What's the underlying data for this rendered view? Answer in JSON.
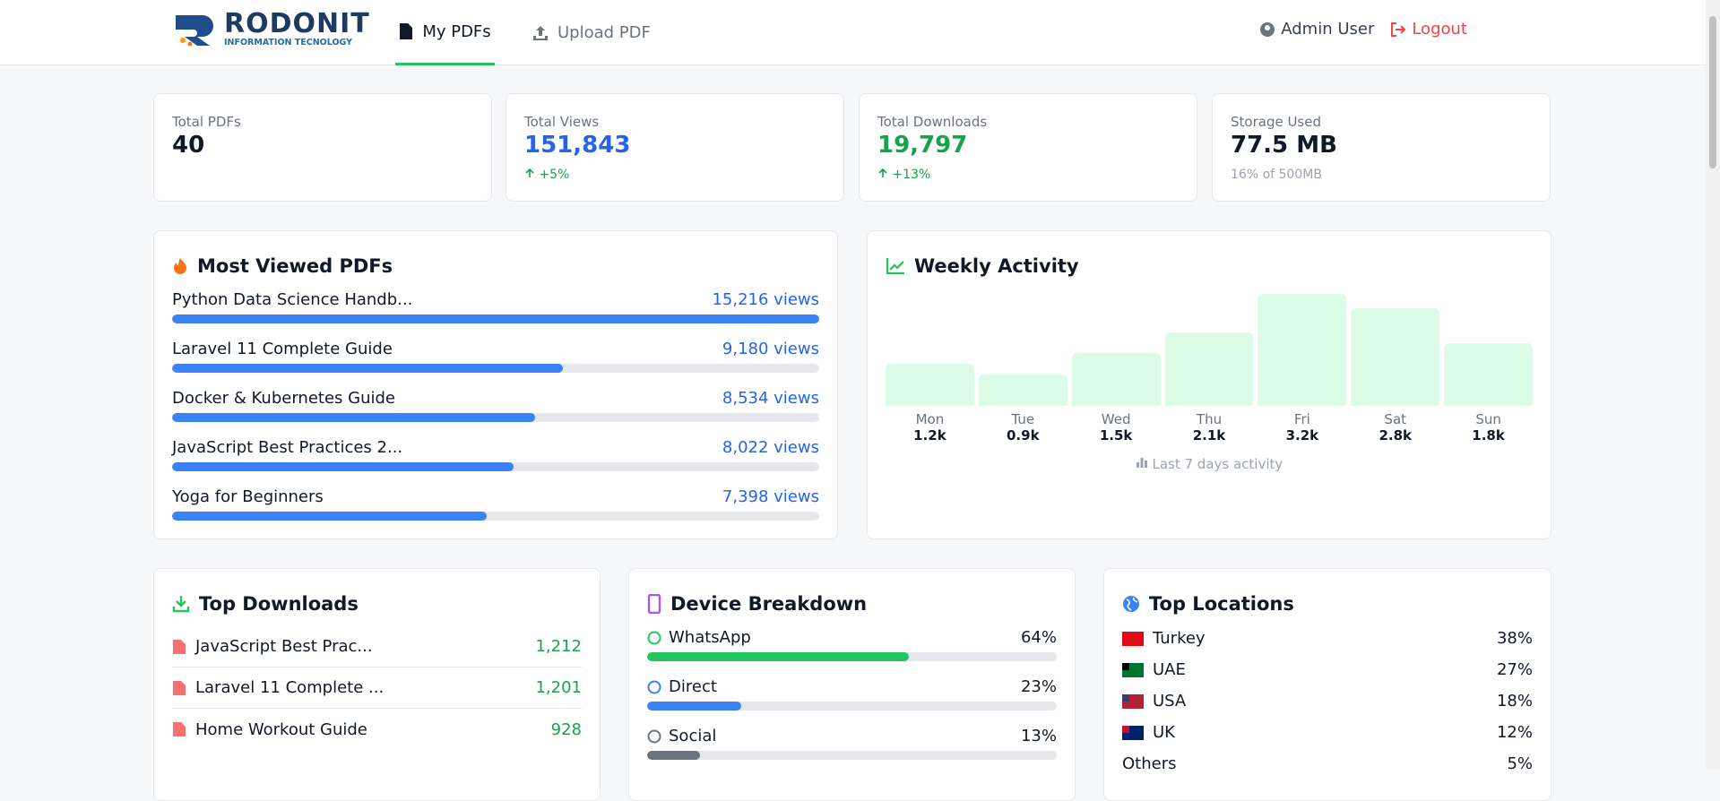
{
  "header": {
    "logo_title": "RODONIT",
    "logo_subtitle": "INFORMATION TECNOLOGY",
    "nav": [
      "My PDFs",
      "Upload PDF"
    ],
    "user": "Admin User",
    "logout": "Logout"
  },
  "stats": [
    {
      "label": "Total PDFs",
      "value": "40"
    },
    {
      "label": "Total Views",
      "value": "151,843",
      "change": "+5%"
    },
    {
      "label": "Total Downloads",
      "value": "19,797",
      "change": "+13%"
    },
    {
      "label": "Storage Used",
      "value": "77.5 MB",
      "note": "16% of 500MB"
    }
  ],
  "most_viewed": {
    "title": "Most Viewed PDFs",
    "items": [
      {
        "name": "Python Data Science Handb...",
        "views": 15216,
        "views_label": "15,216 views"
      },
      {
        "name": "Laravel 11 Complete Guide",
        "views": 9180,
        "views_label": "9,180 views"
      },
      {
        "name": "Docker & Kubernetes Guide",
        "views": 8534,
        "views_label": "8,534 views"
      },
      {
        "name": "JavaScript Best Practices 2...",
        "views": 8022,
        "views_label": "8,022 views"
      },
      {
        "name": "Yoga for Beginners",
        "views": 7398,
        "views_label": "7,398 views"
      }
    ]
  },
  "weekly": {
    "title": "Weekly Activity",
    "days": [
      {
        "day": "Mon",
        "value": 1200,
        "value_label": "1.2k"
      },
      {
        "day": "Tue",
        "value": 900,
        "value_label": "0.9k"
      },
      {
        "day": "Wed",
        "value": 1500,
        "value_label": "1.5k"
      },
      {
        "day": "Thu",
        "value": 2100,
        "value_label": "2.1k"
      },
      {
        "day": "Fri",
        "value": 3200,
        "value_label": "3.2k"
      },
      {
        "day": "Sat",
        "value": 2800,
        "value_label": "2.8k"
      },
      {
        "day": "Sun",
        "value": 1800,
        "value_label": "1.8k"
      }
    ],
    "footnote": "Last 7 days activity"
  },
  "top_downloads": {
    "title": "Top Downloads",
    "items": [
      {
        "name": "JavaScript Best Prac...",
        "downloads": "1,212"
      },
      {
        "name": "Laravel 11 Complete ...",
        "downloads": "1,201"
      },
      {
        "name": "Home Workout Guide",
        "downloads": "928"
      }
    ]
  },
  "devices": {
    "title": "Device Breakdown",
    "items": [
      {
        "name": "WhatsApp",
        "share": 64,
        "share_label": "64%",
        "color": "#22c55e"
      },
      {
        "name": "Direct",
        "share": 23,
        "share_label": "23%",
        "color": "#3b82f6"
      },
      {
        "name": "Social",
        "share": 13,
        "share_label": "13%",
        "color": "#6b7280"
      }
    ]
  },
  "locations": {
    "title": "Top Locations",
    "items": [
      {
        "name": "Turkey",
        "share": "38%"
      },
      {
        "name": "UAE",
        "share": "27%"
      },
      {
        "name": "USA",
        "share": "18%"
      },
      {
        "name": "UK",
        "share": "12%"
      },
      {
        "name": "Others",
        "share": "5%"
      }
    ]
  }
}
